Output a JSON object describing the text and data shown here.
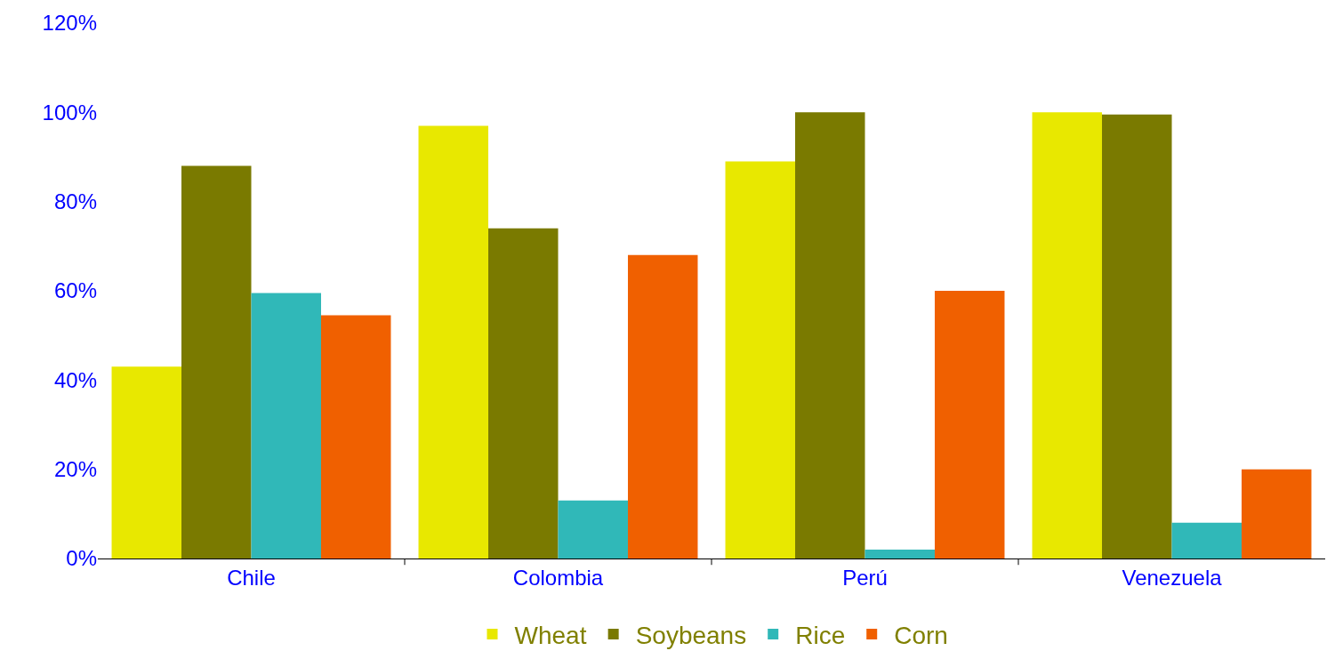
{
  "chart_data": {
    "type": "bar",
    "categories": [
      "Chile",
      "Colombia",
      "Perú",
      "Venezuela"
    ],
    "series": [
      {
        "name": "Wheat",
        "color": "#e8e800",
        "values": [
          43,
          97,
          89,
          100
        ]
      },
      {
        "name": "Soybeans",
        "color": "#7a7a00",
        "values": [
          88,
          74,
          100,
          99.5
        ]
      },
      {
        "name": "Rice",
        "color": "#30b8b8",
        "values": [
          59.5,
          13,
          2,
          8
        ]
      },
      {
        "name": "Corn",
        "color": "#f06000",
        "values": [
          54.5,
          68,
          60,
          20
        ]
      }
    ],
    "ylim": [
      0,
      120
    ],
    "yticks": [
      {
        "value": 0,
        "label": "0%"
      },
      {
        "value": 20,
        "label": "20%"
      },
      {
        "value": 40,
        "label": "40%"
      },
      {
        "value": 60,
        "label": "60%"
      },
      {
        "value": 80,
        "label": "80%"
      },
      {
        "value": 100,
        "label": "100%"
      },
      {
        "value": 120,
        "label": "120%"
      }
    ],
    "grid": false,
    "legend": "bottom"
  }
}
